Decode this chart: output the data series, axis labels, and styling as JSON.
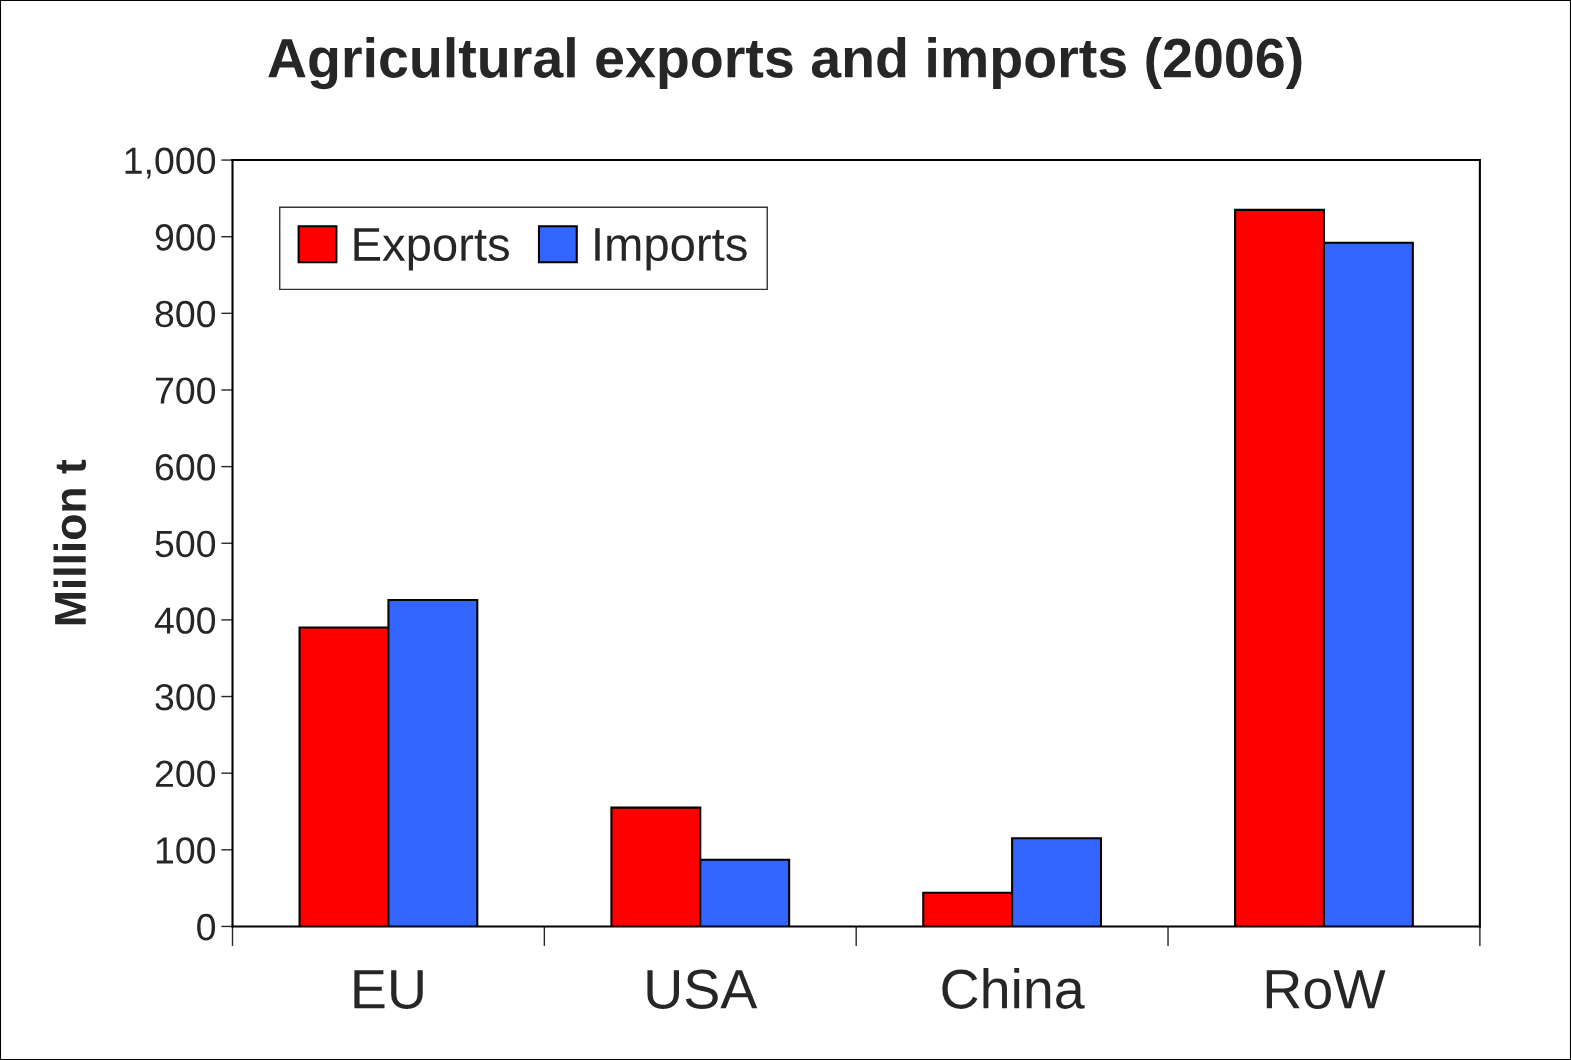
{
  "chart_data": {
    "type": "bar",
    "title": "Agricultural exports and imports (2006)",
    "ylabel": "Million t",
    "categories": [
      "EU",
      "USA",
      "China",
      "RoW"
    ],
    "series": [
      {
        "name": "Exports",
        "color": "#ff0000",
        "values": [
          390,
          155,
          44,
          935
        ]
      },
      {
        "name": "Imports",
        "color": "#3366ff",
        "values": [
          426,
          87,
          115,
          892
        ]
      }
    ],
    "ylim": [
      0,
      1000
    ],
    "yticks": [
      0,
      100,
      200,
      300,
      400,
      500,
      600,
      700,
      800,
      900,
      {
        "value": 1000,
        "label": "1,000"
      }
    ],
    "grid": false,
    "legend": "top left"
  }
}
